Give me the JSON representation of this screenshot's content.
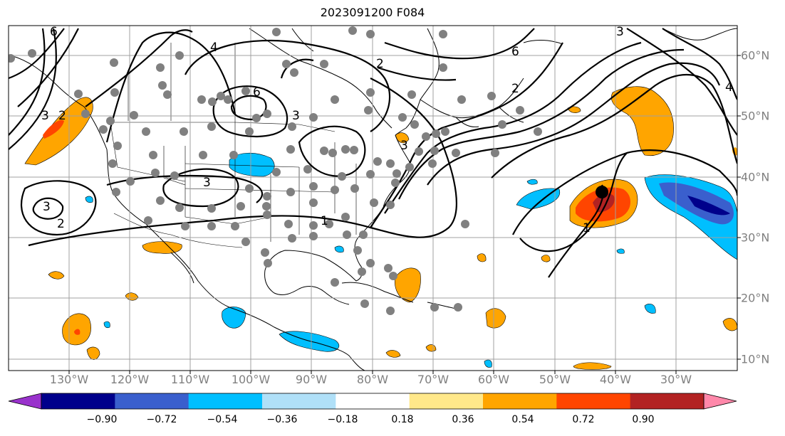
{
  "title": "2023091200 F084",
  "lon_labels": [
    "130°W",
    "120°W",
    "110°W",
    "100°W",
    "90°W",
    "80°W",
    "70°W",
    "60°W",
    "50°W",
    "40°W",
    "30°W"
  ],
  "lat_labels": [
    "60°N",
    "50°N",
    "40°N",
    "30°N",
    "20°N",
    "10°N"
  ],
  "colorbar": {
    "ticks": [
      "−0.90",
      "−0.72",
      "−0.54",
      "−0.36",
      "−0.18",
      "0.18",
      "0.36",
      "0.54",
      "0.72",
      "0.90"
    ],
    "colors": [
      "#9932cc",
      "#00008b",
      "#3a5fcd",
      "#00bfff",
      "#b0e0f8",
      "#ffffff",
      "#ffe88a",
      "#ffa500",
      "#ff4500",
      "#b22222",
      "#ff88aa"
    ]
  },
  "colors": {
    "station_dot": "#808080",
    "storm_center": "#000000",
    "gridline": "#a0a0a0"
  },
  "contour_labels": [
    "6",
    "4",
    "2",
    "3",
    "6",
    "3",
    "3",
    "1",
    "2",
    "3",
    "6",
    "3",
    "1",
    "2",
    "3",
    "4",
    "2"
  ]
}
